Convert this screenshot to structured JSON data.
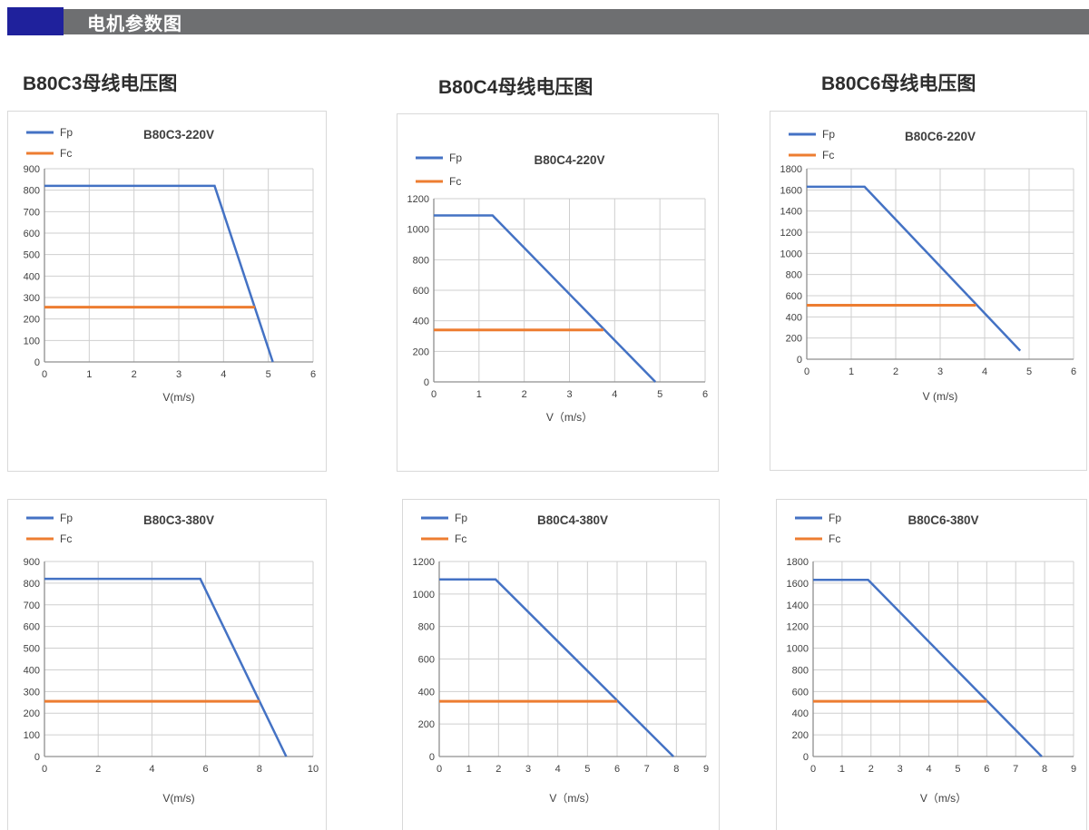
{
  "header": {
    "title": "电机参数图",
    "bar_color": "#6e6f71",
    "accent_color": "#1f219c",
    "text_color": "#ffffff"
  },
  "section_titles": [
    {
      "label": "B80C3母线电压图"
    },
    {
      "label": "B80C4母线电压图"
    },
    {
      "label": "B80C6母线电压图"
    }
  ],
  "colors": {
    "fp": "#4472C4",
    "fc": "#ED7D31",
    "grid": "#cfcfcf",
    "axis": "#8f8f8f",
    "text": "#3f3f3f",
    "card_border": "#d9d9d9"
  },
  "chart_data": [
    {
      "type": "line",
      "title": "B80C3-220V",
      "xlabel": "V(m/s)",
      "xlim": [
        0,
        6
      ],
      "xticks": [
        0,
        1,
        2,
        3,
        4,
        5,
        6
      ],
      "ylim": [
        0,
        900
      ],
      "yticks": [
        0,
        100,
        200,
        300,
        400,
        500,
        600,
        700,
        800,
        900
      ],
      "grid": true,
      "legend_position": "top-left",
      "series": [
        {
          "name": "Fp",
          "color_key": "fp",
          "points": [
            [
              0,
              820
            ],
            [
              3.8,
              820
            ],
            [
              5.1,
              0
            ]
          ]
        },
        {
          "name": "Fc",
          "color_key": "fc",
          "points": [
            [
              0,
              255
            ],
            [
              4.7,
              255
            ]
          ]
        }
      ]
    },
    {
      "type": "line",
      "title": "B80C4-220V",
      "xlabel": "V（m/s）",
      "xlim": [
        0,
        6
      ],
      "xticks": [
        0,
        1,
        2,
        3,
        4,
        5,
        6
      ],
      "ylim": [
        0,
        1200
      ],
      "yticks": [
        0,
        200,
        400,
        600,
        800,
        1000,
        1200
      ],
      "grid": true,
      "legend_position": "top-left",
      "series": [
        {
          "name": "Fp",
          "color_key": "fp",
          "points": [
            [
              0,
              1090
            ],
            [
              1.3,
              1090
            ],
            [
              4.9,
              0
            ]
          ]
        },
        {
          "name": "Fc",
          "color_key": "fc",
          "points": [
            [
              0,
              340
            ],
            [
              3.75,
              340
            ]
          ]
        }
      ]
    },
    {
      "type": "line",
      "title": "B80C6-220V",
      "xlabel": "V (m/s)",
      "xlim": [
        0,
        6
      ],
      "xticks": [
        0,
        1,
        2,
        3,
        4,
        5,
        6
      ],
      "ylim": [
        0,
        1800
      ],
      "yticks": [
        0,
        200,
        400,
        600,
        800,
        1000,
        1200,
        1400,
        1600,
        1800
      ],
      "grid": true,
      "legend_position": "top-left",
      "series": [
        {
          "name": "Fp",
          "color_key": "fp",
          "points": [
            [
              0,
              1630
            ],
            [
              1.3,
              1630
            ],
            [
              4.8,
              80
            ]
          ]
        },
        {
          "name": "Fc",
          "color_key": "fc",
          "points": [
            [
              0,
              510
            ],
            [
              3.8,
              510
            ]
          ]
        }
      ]
    },
    {
      "type": "line",
      "title": "B80C3-380V",
      "xlabel": "V(m/s)",
      "xlim": [
        0,
        10
      ],
      "xticks": [
        0,
        2,
        4,
        6,
        8,
        10
      ],
      "ylim": [
        0,
        900
      ],
      "yticks": [
        0,
        100,
        200,
        300,
        400,
        500,
        600,
        700,
        800,
        900
      ],
      "grid": true,
      "legend_position": "top-left",
      "series": [
        {
          "name": "Fp",
          "color_key": "fp",
          "points": [
            [
              0,
              820
            ],
            [
              5.8,
              820
            ],
            [
              9.0,
              0
            ]
          ]
        },
        {
          "name": "Fc",
          "color_key": "fc",
          "points": [
            [
              0,
              255
            ],
            [
              8.0,
              255
            ]
          ]
        }
      ]
    },
    {
      "type": "line",
      "title": "B80C4-380V",
      "xlabel": "V（m/s）",
      "xlim": [
        0,
        9
      ],
      "xticks": [
        0,
        1,
        2,
        3,
        4,
        5,
        6,
        7,
        8,
        9
      ],
      "ylim": [
        0,
        1200
      ],
      "yticks": [
        0,
        200,
        400,
        600,
        800,
        1000,
        1200
      ],
      "grid": true,
      "legend_position": "top-left",
      "series": [
        {
          "name": "Fp",
          "color_key": "fp",
          "points": [
            [
              0,
              1090
            ],
            [
              1.9,
              1090
            ],
            [
              7.9,
              0
            ]
          ]
        },
        {
          "name": "Fc",
          "color_key": "fc",
          "points": [
            [
              0,
              340
            ],
            [
              6.0,
              340
            ]
          ]
        }
      ]
    },
    {
      "type": "line",
      "title": "B80C6-380V",
      "xlabel": "V（m/s）",
      "xlim": [
        0,
        9
      ],
      "xticks": [
        0,
        1,
        2,
        3,
        4,
        5,
        6,
        7,
        8,
        9
      ],
      "ylim": [
        0,
        1800
      ],
      "yticks": [
        0,
        200,
        400,
        600,
        800,
        1000,
        1200,
        1400,
        1600,
        1800
      ],
      "grid": true,
      "legend_position": "top-left",
      "series": [
        {
          "name": "Fp",
          "color_key": "fp",
          "points": [
            [
              0,
              1630
            ],
            [
              1.9,
              1630
            ],
            [
              7.9,
              0
            ]
          ]
        },
        {
          "name": "Fc",
          "color_key": "fc",
          "points": [
            [
              0,
              510
            ],
            [
              6.0,
              510
            ]
          ]
        }
      ]
    }
  ]
}
